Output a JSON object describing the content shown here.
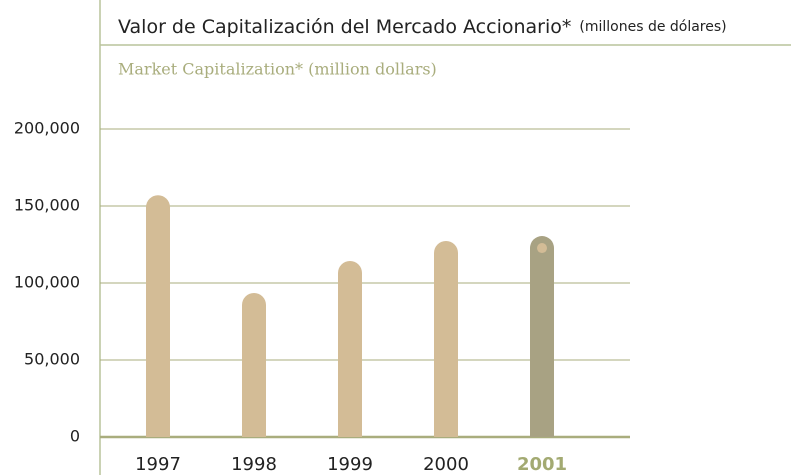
{
  "chart_data": {
    "type": "bar",
    "title": "Valor de Capitalización del Mercado Accionario*",
    "title_unit": "(millones de dólares)",
    "subtitle": "Market Capitalization* (million dollars)",
    "categories": [
      "1997",
      "1998",
      "1999",
      "2000",
      "2001"
    ],
    "values": [
      157000,
      93500,
      114300,
      127300,
      130500
    ],
    "color": "#d3bc96",
    "highlight_index": 4,
    "highlight_color": "#a8a283",
    "highlight_label_color": "#a3aa72",
    "ylim": [
      0,
      200000
    ],
    "yticks": [
      0,
      {
        "value": 50000,
        "label": "50,000"
      },
      {
        "value": 100000,
        "label": "100,000"
      },
      {
        "value": 150000,
        "label": "150,000"
      },
      {
        "value": 200000,
        "label": "200,000"
      }
    ],
    "grid": true,
    "grid_color": "#a9ad7d"
  }
}
